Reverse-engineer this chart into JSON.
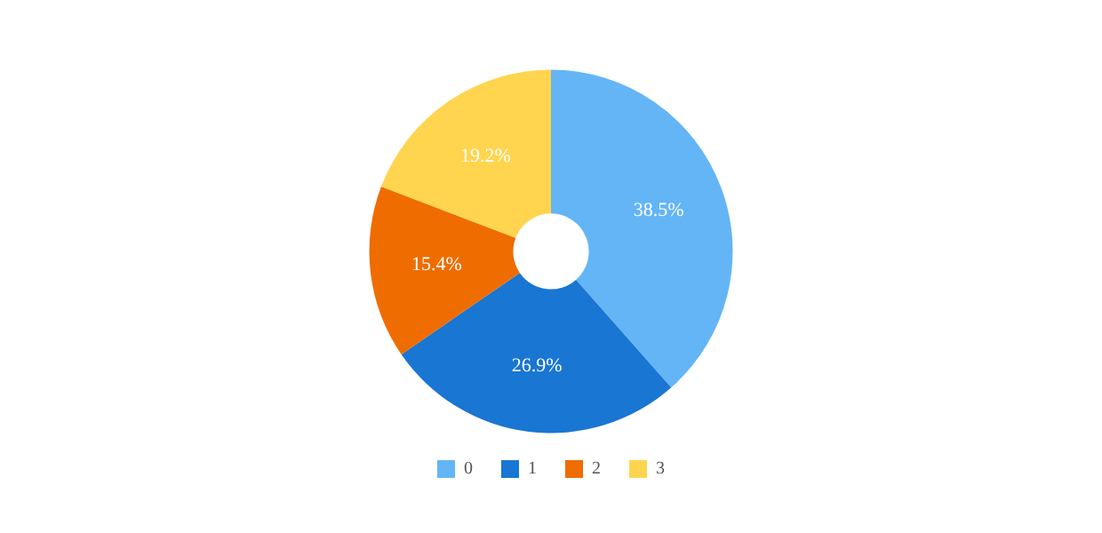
{
  "chart_data": {
    "type": "donut",
    "categories": [
      "0",
      "1",
      "2",
      "3"
    ],
    "values": [
      38.5,
      26.9,
      15.4,
      19.2
    ],
    "colors": [
      "#64b5f6",
      "#1976d2",
      "#ef6c00",
      "#ffd54f"
    ],
    "value_labels": [
      "38.5%",
      "26.9%",
      "15.4%",
      "19.2%"
    ],
    "legend": "bottom"
  }
}
